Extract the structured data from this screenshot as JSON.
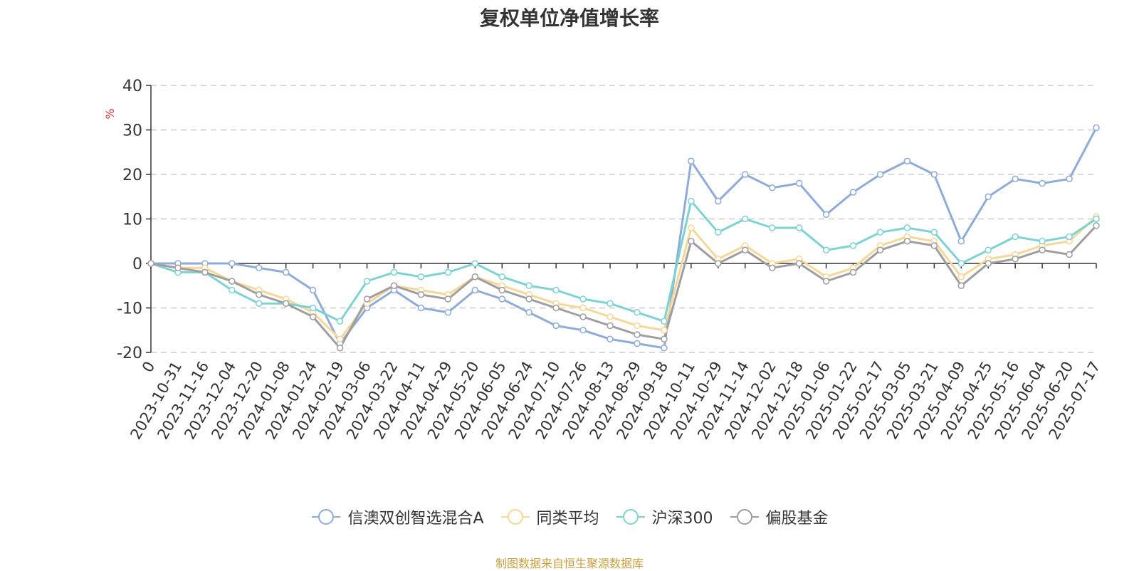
{
  "chart_data": {
    "type": "line",
    "title": "复权单位净值增长率",
    "ylabel": "%",
    "ylim": [
      -20,
      40
    ],
    "yticks": [
      40,
      30,
      20,
      10,
      0,
      -10,
      -20
    ],
    "grid": true,
    "legend_position": "bottom-center",
    "x_tick_labels": [
      "0",
      "2023-10-31",
      "2023-11-16",
      "2023-12-04",
      "2023-12-20",
      "2024-01-08",
      "2024-01-24",
      "2024-02-19",
      "2024-03-06",
      "2024-03-22",
      "2024-04-11",
      "2024-04-29",
      "2024-05-20",
      "2024-06-05",
      "2024-06-24",
      "2024-07-10",
      "2024-07-26",
      "2024-08-13",
      "2024-08-29",
      "2024-09-18",
      "2024-10-11",
      "2024-10-29",
      "2024-11-14",
      "2024-12-02",
      "2024-12-18",
      "2025-01-06",
      "2025-01-22",
      "2025-02-17",
      "2025-03-05",
      "2025-03-21",
      "2025-04-09",
      "2025-04-25",
      "2025-05-16",
      "2025-06-04",
      "2025-06-20",
      "2025-07-17"
    ],
    "series": [
      {
        "name": "信澳双创智选混合A",
        "color": "#8eabd9",
        "values": [
          0,
          0,
          0,
          0,
          -1,
          -2,
          -6,
          -18,
          -10,
          -6,
          -10,
          -11,
          -6,
          -8,
          -11,
          -14,
          -15,
          -17,
          -18,
          -19,
          23,
          14,
          20,
          17,
          18,
          11,
          16,
          20,
          23,
          20,
          5,
          15,
          19,
          18,
          19,
          30.5
        ]
      },
      {
        "name": "同类平均",
        "color": "#f7d797",
        "values": [
          0,
          -1,
          -1,
          -4,
          -6,
          -8,
          -11,
          -17,
          -9,
          -5,
          -6,
          -7,
          -3,
          -5,
          -7,
          -9,
          -10,
          -12,
          -14,
          -15,
          8,
          1,
          4,
          0,
          1,
          -3,
          -1,
          4,
          6,
          5,
          -3,
          1,
          2,
          4,
          5,
          10.5
        ]
      },
      {
        "name": "沪深300",
        "color": "#7dd3d2",
        "values": [
          0,
          -2,
          -2,
          -6,
          -9,
          -9,
          -10,
          -13,
          -4,
          -2,
          -3,
          -2,
          0,
          -3,
          -5,
          -6,
          -8,
          -9,
          -11,
          -13,
          14,
          7,
          10,
          8,
          8,
          3,
          4,
          7,
          8,
          7,
          0,
          3,
          6,
          5,
          6,
          10
        ]
      },
      {
        "name": "偏股基金",
        "color": "#9e9e9e",
        "values": [
          0,
          -1,
          -2,
          -4,
          -7,
          -9,
          -12,
          -19,
          -8,
          -5,
          -7,
          -8,
          -3,
          -6,
          -8,
          -10,
          -12,
          -14,
          -16,
          -17,
          5,
          0,
          3,
          -1,
          0,
          -4,
          -2,
          3,
          5,
          4,
          -5,
          0,
          1,
          3,
          2,
          8.5
        ]
      }
    ]
  },
  "footer": {
    "text": "制图数据来自恒生聚源数据库",
    "color": "#c8a040"
  }
}
